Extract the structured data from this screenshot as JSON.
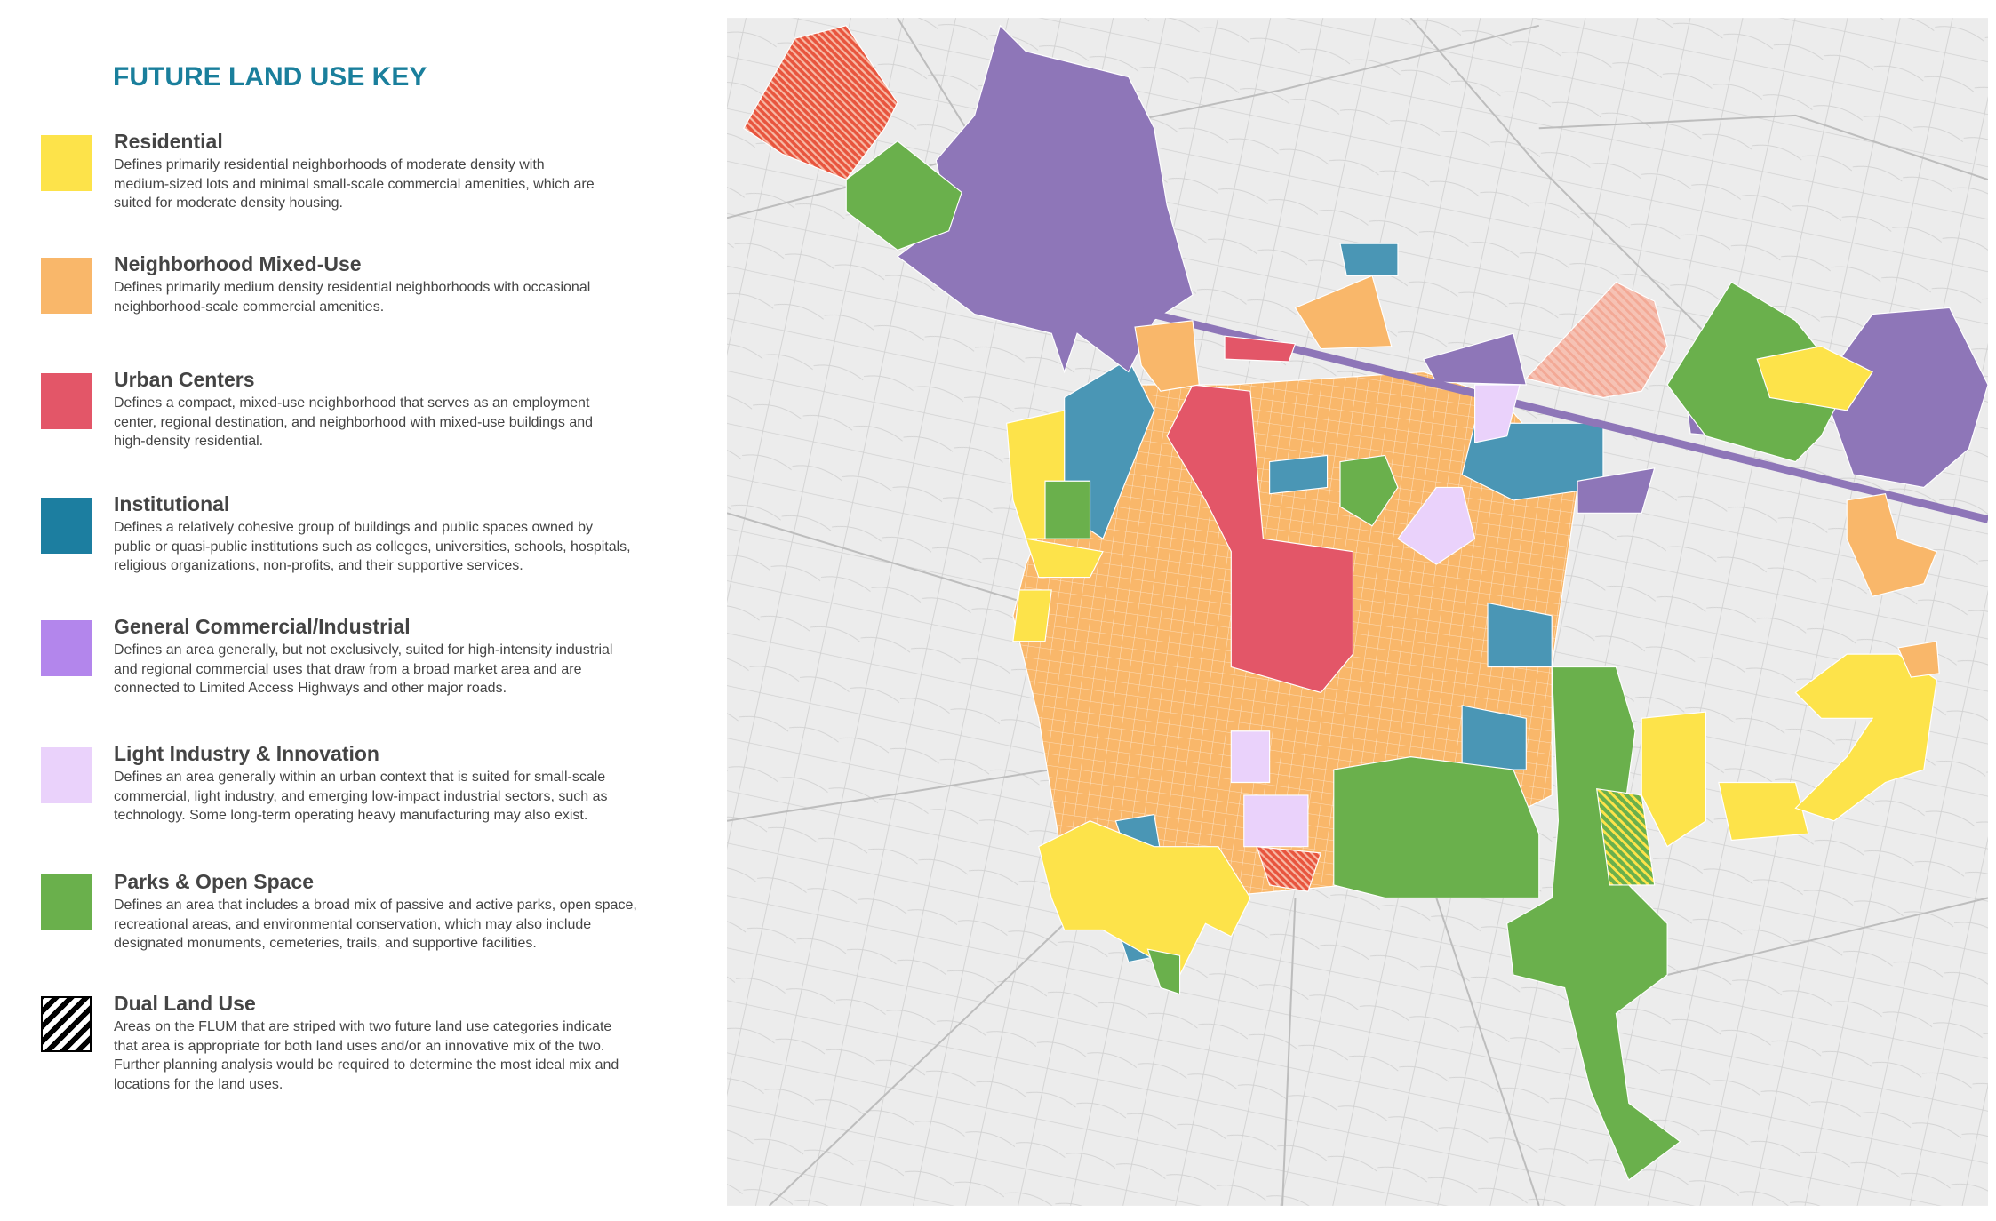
{
  "key": {
    "title": "FUTURE LAND USE KEY",
    "items": [
      {
        "label": "Residential",
        "description": [
          "Defines primarily residential neighborhoods of moderate density with",
          "medium-sized lots and minimal small-scale commercial amenities, which are",
          "suited for moderate density housing."
        ]
      },
      {
        "label": "Neighborhood Mixed-Use",
        "description": [
          "Defines primarily medium density residential neighborhoods with occasional",
          "neighborhood-scale commercial amenities."
        ]
      },
      {
        "label": "Urban Centers",
        "description": [
          "Defines a compact, mixed-use neighborhood that serves as an employment",
          "center,  regional destination, and neighborhood with mixed-use buildings and",
          "high-density residential."
        ]
      },
      {
        "label": "Institutional",
        "description": [
          "Defines a relatively cohesive group of buildings and public spaces owned by",
          "public or quasi-public institutions such as colleges, universities, schools, hospitals,",
          "religious organizations, non-profits, and their supportive services."
        ]
      },
      {
        "label": "General Commercial/Industrial",
        "description": [
          "Defines an area generally, but not exclusively, suited for high-intensity industrial",
          "and regional commercial uses that draw from a broad market area and are",
          "connected to Limited Access Highways and other major roads."
        ]
      },
      {
        "label": "Light Industry & Innovation",
        "description": [
          "Defines an area generally within an urban context that is suited for small-scale",
          "commercial, light industry, and emerging low-impact industrial sectors, such as",
          "technology. Some long-term operating heavy manufacturing may also exist."
        ]
      },
      {
        "label": "Parks & Open Space",
        "description": [
          "Defines an area that includes a broad mix of passive and active parks, open space,",
          "recreational areas, and environmental conservation, which may also include",
          "designated monuments, cemeteries, trails, and supportive facilities."
        ]
      },
      {
        "label": "Dual Land Use",
        "description": [
          "Areas on the FLUM that are striped with two future land use categories indicate",
          "that area is appropriate for both land uses and/or an innovative mix of the two.",
          "Further planning analysis would be required to determine the most ideal mix and",
          "locations for the land uses."
        ]
      }
    ]
  }
}
